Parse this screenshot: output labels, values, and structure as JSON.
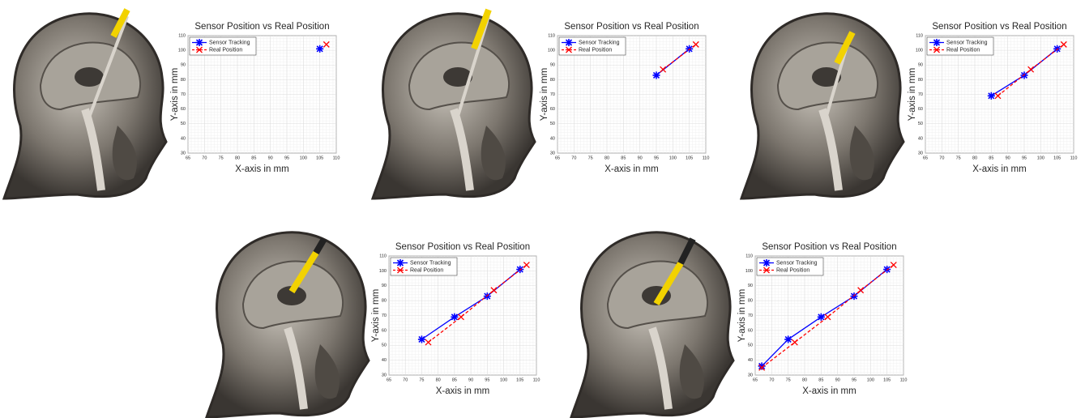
{
  "chart_data": [
    {
      "type": "line",
      "title": "Sensor Position vs Real Position",
      "xlabel": "X-axis in mm",
      "ylabel": "Y-axis in mm",
      "xlim": [
        65,
        110
      ],
      "xticks": [
        65,
        70,
        75,
        80,
        85,
        90,
        95,
        100,
        105,
        110
      ],
      "ylim": [
        30,
        110
      ],
      "yticks": [
        30,
        40,
        50,
        60,
        70,
        80,
        90,
        100,
        110
      ],
      "grid": true,
      "legend": "upper left",
      "series": [
        {
          "name": "Sensor Tracking",
          "color": "#0000ff",
          "marker": "asterisk",
          "dash": false,
          "x": [
            105
          ],
          "values": [
            101
          ]
        },
        {
          "name": "Real Position",
          "color": "#ff0000",
          "marker": "x",
          "dash": true,
          "x": [
            107
          ],
          "values": [
            104
          ]
        }
      ]
    },
    {
      "type": "line",
      "title": "Sensor Position vs Real Position",
      "xlabel": "X-axis in mm",
      "ylabel": "Y-axis in mm",
      "xlim": [
        65,
        110
      ],
      "xticks": [
        65,
        70,
        75,
        80,
        85,
        90,
        95,
        100,
        105,
        110
      ],
      "ylim": [
        30,
        110
      ],
      "yticks": [
        30,
        40,
        50,
        60,
        70,
        80,
        90,
        100,
        110
      ],
      "grid": true,
      "legend": "upper left",
      "series": [
        {
          "name": "Sensor Tracking",
          "color": "#0000ff",
          "marker": "asterisk",
          "dash": false,
          "x": [
            95,
            105
          ],
          "values": [
            83,
            101
          ]
        },
        {
          "name": "Real Position",
          "color": "#ff0000",
          "marker": "x",
          "dash": true,
          "x": [
            97,
            107
          ],
          "values": [
            87,
            104
          ]
        }
      ]
    },
    {
      "type": "line",
      "title": "Sensor Position vs Real Position",
      "xlabel": "X-axis in mm",
      "ylabel": "Y-axis in mm",
      "xlim": [
        65,
        110
      ],
      "xticks": [
        65,
        70,
        75,
        80,
        85,
        90,
        95,
        100,
        105,
        110
      ],
      "ylim": [
        30,
        110
      ],
      "yticks": [
        30,
        40,
        50,
        60,
        70,
        80,
        90,
        100,
        110
      ],
      "grid": true,
      "legend": "upper left",
      "series": [
        {
          "name": "Sensor Tracking",
          "color": "#0000ff",
          "marker": "asterisk",
          "dash": false,
          "x": [
            85,
            95,
            105
          ],
          "values": [
            69,
            83,
            101
          ]
        },
        {
          "name": "Real Position",
          "color": "#ff0000",
          "marker": "x",
          "dash": true,
          "x": [
            87,
            97,
            107
          ],
          "values": [
            69,
            87,
            104
          ]
        }
      ]
    },
    {
      "type": "line",
      "title": "Sensor Position vs Real Position",
      "xlabel": "X-axis in mm",
      "ylabel": "Y-axis in mm",
      "xlim": [
        65,
        110
      ],
      "xticks": [
        65,
        70,
        75,
        80,
        85,
        90,
        95,
        100,
        105,
        110
      ],
      "ylim": [
        30,
        110
      ],
      "yticks": [
        30,
        40,
        50,
        60,
        70,
        80,
        90,
        100,
        110
      ],
      "grid": true,
      "legend": "upper left",
      "series": [
        {
          "name": "Sensor Tracking",
          "color": "#0000ff",
          "marker": "asterisk",
          "dash": false,
          "x": [
            75,
            85,
            95,
            105
          ],
          "values": [
            54,
            69,
            83,
            101
          ]
        },
        {
          "name": "Real Position",
          "color": "#ff0000",
          "marker": "x",
          "dash": true,
          "x": [
            77,
            87,
            97,
            107
          ],
          "values": [
            52,
            69,
            87,
            104
          ]
        }
      ]
    },
    {
      "type": "line",
      "title": "Sensor Position vs Real Position",
      "xlabel": "X-axis in mm",
      "ylabel": "Y-axis in mm",
      "xlim": [
        65,
        110
      ],
      "xticks": [
        65,
        70,
        75,
        80,
        85,
        90,
        95,
        100,
        105,
        110
      ],
      "ylim": [
        30,
        110
      ],
      "yticks": [
        30,
        40,
        50,
        60,
        70,
        80,
        90,
        100,
        110
      ],
      "grid": true,
      "legend": "upper left",
      "series": [
        {
          "name": "Sensor Tracking",
          "color": "#0000ff",
          "marker": "asterisk",
          "dash": false,
          "x": [
            67,
            75,
            85,
            95,
            105
          ],
          "values": [
            36,
            54,
            69,
            83,
            101
          ]
        },
        {
          "name": "Real Position",
          "color": "#ff0000",
          "marker": "x",
          "dash": true,
          "x": [
            67,
            77,
            87,
            97,
            107
          ],
          "values": [
            35,
            52,
            69,
            87,
            104
          ]
        }
      ]
    }
  ]
}
